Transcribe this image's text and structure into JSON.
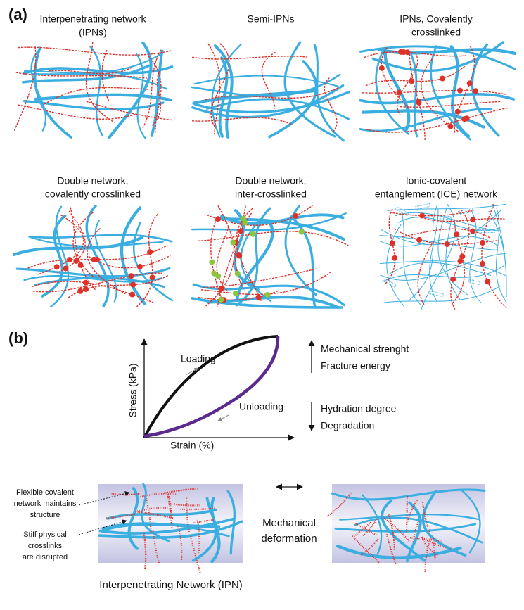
{
  "panel_a": {
    "label": "(a)",
    "networks": [
      {
        "title": [
          "Interpenetrating network",
          "(IPNs)"
        ]
      },
      {
        "title": [
          "Semi-IPNs"
        ]
      },
      {
        "title": [
          "IPNs, Covalently",
          "crosslinked"
        ]
      },
      {
        "title": [
          "Double network,",
          "covalently crosslinked"
        ]
      },
      {
        "title": [
          "Double network,",
          "inter-crosslinked"
        ]
      },
      {
        "title": [
          "Ionic-covalent",
          "entanglement (ICE) network"
        ]
      }
    ]
  },
  "panel_b": {
    "label": "(b)",
    "plot": {
      "y_label": "Stress (kPa)",
      "x_label": "Strain (%)",
      "loading": "Loading",
      "unloading": "Unloading"
    },
    "increases": [
      "Mechanical strenght",
      "Fracture energy"
    ],
    "decreases": [
      "Hydration degree",
      "Degradation"
    ],
    "annotations": {
      "covalent": [
        "Flexible covalent",
        "network maintains",
        "structure"
      ],
      "physical": [
        "Stiff physical",
        "crosslinks",
        "are disrupted"
      ]
    },
    "deformation": [
      "Mechanical",
      "deformation"
    ],
    "caption": "Interpenetrating Network (IPN)"
  }
}
